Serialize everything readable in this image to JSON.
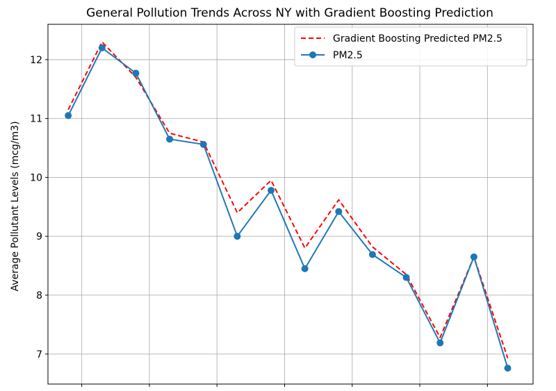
{
  "chart_data": {
    "type": "line",
    "title": "General Pollution Trends Across NY with Gradient Boosting Prediction",
    "xlabel": "",
    "ylabel": "Average Pollutant Levels (mcg/m3)",
    "x": [
      1,
      2,
      3,
      4,
      5,
      6,
      7,
      8,
      9,
      10,
      11,
      12,
      13,
      14
    ],
    "xlim": [
      0.4,
      14.75
    ],
    "ylim": [
      6.49,
      12.6
    ],
    "yticks": [
      7,
      8,
      9,
      10,
      11,
      12
    ],
    "ytick_labels": [
      "7",
      "8",
      "9",
      "10",
      "11",
      "12"
    ],
    "xticks": [
      1.4,
      3.4,
      5.4,
      7.4,
      9.4,
      11.4,
      13.4
    ],
    "grid": true,
    "legend_position": "top-right",
    "series": [
      {
        "name": "Gradient Boosting Predicted PM2.5",
        "values": [
          11.15,
          12.3,
          11.7,
          10.75,
          10.6,
          9.4,
          9.95,
          8.8,
          9.62,
          8.82,
          8.35,
          7.28,
          8.65,
          6.93
        ],
        "color": "#ff0000",
        "style": "dashed"
      },
      {
        "name": "PM2.5",
        "values": [
          11.05,
          12.2,
          11.77,
          10.65,
          10.56,
          9.0,
          9.78,
          8.45,
          9.42,
          8.69,
          8.3,
          7.19,
          8.65,
          6.76
        ],
        "color": "#1f77b4",
        "style": "solid-markers"
      }
    ]
  }
}
